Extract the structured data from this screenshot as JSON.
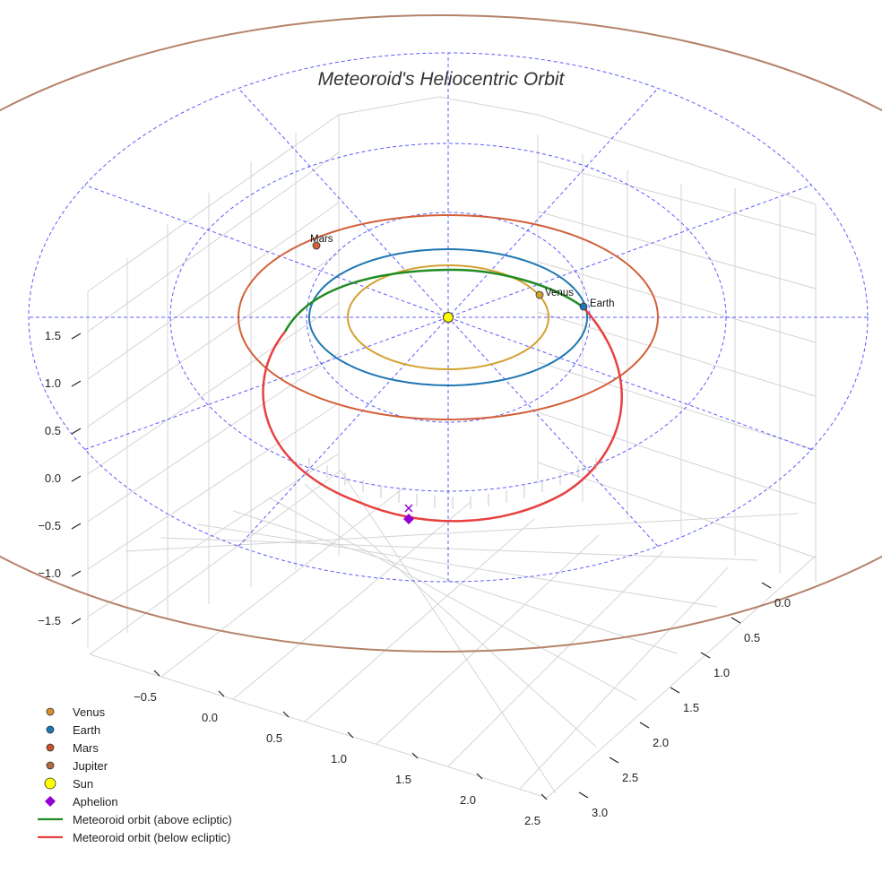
{
  "chart_data": {
    "type": "3d-line",
    "title": "Meteoroid's Heliocentric Orbit",
    "axes": {
      "x": {
        "ticks": [
          "0.0",
          "0.5",
          "1.0",
          "1.5",
          "2.0",
          "2.5",
          "3.0"
        ]
      },
      "y": {
        "ticks": [
          "−0.5",
          "0.0",
          "0.5",
          "1.0",
          "1.5",
          "2.0",
          "2.5"
        ]
      },
      "z": {
        "ticks": [
          "1.5",
          "1.0",
          "0.5",
          "0.0",
          "−0.5",
          "−1.0",
          "−1.5"
        ]
      }
    },
    "planets": [
      {
        "name": "Venus",
        "label": "Venus",
        "orbit_radius_au": 0.72,
        "color": "#d4a030"
      },
      {
        "name": "Earth",
        "label": "Earth",
        "orbit_radius_au": 1.0,
        "color": "#1f77b4"
      },
      {
        "name": "Mars",
        "label": "Mars",
        "orbit_radius_au": 1.52,
        "color": "#d2603a"
      },
      {
        "name": "Jupiter",
        "orbit_radius_au": 5.2,
        "color": "#b5826a"
      }
    ],
    "sun": {
      "label": "Sun",
      "x": 0,
      "y": 0,
      "z": 0,
      "color": "#ffff00"
    },
    "meteoroid_orbit": [
      {
        "segment": "above ecliptic",
        "color": "#228b22"
      },
      {
        "segment": "below ecliptic",
        "color": "#e84040"
      }
    ],
    "aphelion": {
      "label": "Aphelion",
      "color": "#9400d3"
    },
    "ecliptic_grid": {
      "rings_au": [
        1,
        2,
        3
      ],
      "color": "#3333ff",
      "style": "dashed"
    },
    "legend": [
      {
        "label": "Venus",
        "marker": "circle",
        "color": "#d98c2c"
      },
      {
        "label": "Earth",
        "marker": "circle",
        "color": "#1f77b4"
      },
      {
        "label": "Mars",
        "marker": "circle",
        "color": "#c8502e"
      },
      {
        "label": "Jupiter",
        "marker": "circle",
        "color": "#b06a3c"
      },
      {
        "label": "Sun",
        "marker": "big-circle",
        "color": "#ffff00"
      },
      {
        "label": "Aphelion",
        "marker": "diamond",
        "color": "#9400d3"
      },
      {
        "label": "Meteoroid orbit (above ecliptic)",
        "marker": "line",
        "color": "#228b22"
      },
      {
        "label": "Meteoroid orbit (below ecliptic)",
        "marker": "line",
        "color": "#e84040"
      }
    ]
  }
}
